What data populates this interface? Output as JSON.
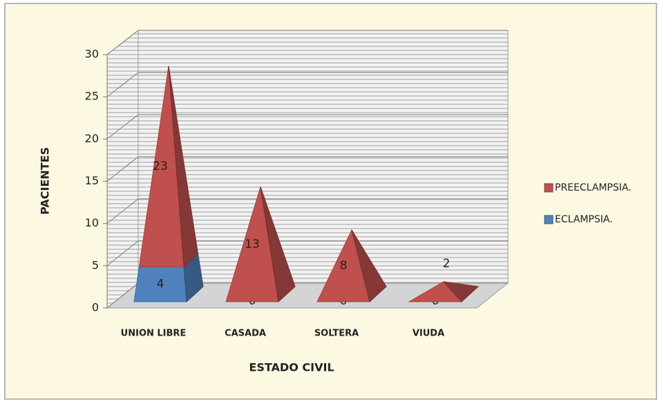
{
  "chart_data": {
    "type": "bar3d_pyramid_stacked",
    "categories": [
      "UNION LIBRE",
      "CASADA",
      "SOLTERA",
      "VIUDA"
    ],
    "series": [
      {
        "name": "ECLAMPSIA.",
        "color": "#4f81bd",
        "values": [
          4,
          0,
          0,
          0
        ]
      },
      {
        "name": "PREECLAMPSIA.",
        "color": "#c0504d",
        "values": [
          23,
          13,
          8,
          2
        ]
      }
    ],
    "ylim": [
      0,
      30
    ],
    "yticks": [
      0,
      5,
      10,
      15,
      20,
      25,
      30
    ],
    "grid": true,
    "ylabel": "PACIENTES",
    "xlabel": "ESTADO CIVIL",
    "legend": "right"
  }
}
